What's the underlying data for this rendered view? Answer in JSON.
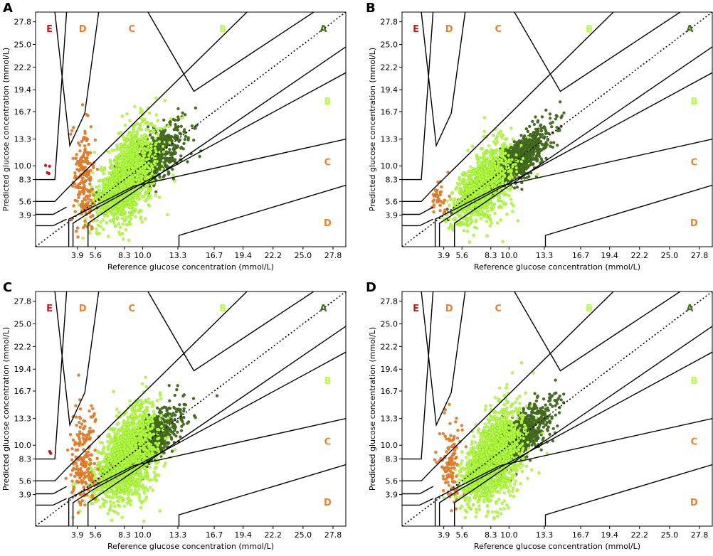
{
  "figure": {
    "x_ticks": [
      "3.9",
      "5.6",
      "8.3",
      "10.0",
      "13.3",
      "16.7",
      "19.4",
      "22.2",
      "25.0",
      "27.8"
    ],
    "y_ticks": [
      "3.9",
      "5.6",
      "8.3",
      "10.0",
      "13.3",
      "16.7",
      "19.4",
      "22.2",
      "25.0",
      "27.8"
    ],
    "xlabel": "Reference glucose concentration (mmol/L)",
    "ylabel": "Predicted glucose concentration (mmol/L)",
    "zone_labels_top": [
      "E",
      "D",
      "C",
      "B",
      "A"
    ],
    "zone_labels_right": [
      "B",
      "C",
      "D"
    ],
    "colors": {
      "A": "#466f1f",
      "B": "#b3ff40",
      "C": "#e9822c",
      "D": "#e9822c",
      "E": "#cc1919"
    }
  },
  "panels": [
    {
      "letter": "A"
    },
    {
      "letter": "B"
    },
    {
      "letter": "C"
    },
    {
      "letter": "D"
    }
  ],
  "chart_data": [
    {
      "type": "scatter",
      "title": "A",
      "xlabel": "Reference glucose concentration (mmol/L)",
      "ylabel": "Predicted glucose concentration (mmol/L)",
      "xlim": [
        0,
        29
      ],
      "ylim": [
        0,
        29
      ],
      "x_ticks": [
        3.9,
        5.6,
        8.3,
        10.0,
        13.3,
        16.7,
        19.4,
        22.2,
        25.0,
        27.8
      ],
      "y_ticks": [
        3.9,
        5.6,
        8.3,
        10.0,
        13.3,
        16.7,
        19.4,
        22.2,
        25.0,
        27.8
      ],
      "series": [
        {
          "name": "Zone A",
          "color": "#466f1f",
          "n": 900,
          "center": [
            10.5,
            10.6
          ],
          "spread": [
            3.0,
            0.13
          ],
          "range": [
            3.5,
            18
          ]
        },
        {
          "name": "Zone B",
          "color": "#b3ff40",
          "n": 1500,
          "center": [
            8.5,
            8.3
          ],
          "spread": [
            2.5,
            0.28
          ],
          "range": [
            3.5,
            16
          ]
        },
        {
          "name": "Zone C/D",
          "color": "#e9822c",
          "n": 200,
          "center": [
            4.5,
            8.5
          ],
          "spread": [
            1.0,
            3.0
          ],
          "range": [
            2.8,
            6.5
          ]
        },
        {
          "name": "Zone E",
          "color": "#cc1919",
          "n": 4,
          "center": [
            1.2,
            9.4
          ],
          "spread": [
            0.3,
            0.6
          ],
          "range": [
            0.8,
            1.7
          ]
        }
      ],
      "annotations": [
        "E",
        "D",
        "C",
        "B",
        "A",
        "B",
        "C",
        "D"
      ]
    },
    {
      "type": "scatter",
      "title": "B",
      "xlabel": "Reference glucose concentration (mmol/L)",
      "ylabel": "Predicted glucose concentration (mmol/L)",
      "xlim": [
        0,
        29
      ],
      "ylim": [
        0,
        29
      ],
      "x_ticks": [
        3.9,
        5.6,
        8.3,
        10.0,
        13.3,
        16.7,
        19.4,
        22.2,
        25.0,
        27.8
      ],
      "y_ticks": [
        3.9,
        5.6,
        8.3,
        10.0,
        13.3,
        16.7,
        19.4,
        22.2,
        25.0,
        27.8
      ],
      "series": [
        {
          "name": "Zone A",
          "color": "#466f1f",
          "n": 1400,
          "center": [
            10.0,
            10.0
          ],
          "spread": [
            3.2,
            0.1
          ],
          "range": [
            3.5,
            17.5
          ]
        },
        {
          "name": "Zone B",
          "color": "#b3ff40",
          "n": 1100,
          "center": [
            7.5,
            7.0
          ],
          "spread": [
            2.3,
            0.25
          ],
          "range": [
            3.5,
            15
          ]
        },
        {
          "name": "Zone C/D",
          "color": "#e9822c",
          "n": 40,
          "center": [
            3.5,
            6.0
          ],
          "spread": [
            0.8,
            1.0
          ],
          "range": [
            2.5,
            5.0
          ]
        },
        {
          "name": "Zone E",
          "color": "#cc1919",
          "n": 0,
          "center": [
            1.2,
            9.4
          ],
          "spread": [
            0.3,
            0.6
          ],
          "range": [
            0.8,
            1.7
          ]
        }
      ],
      "annotations": [
        "E",
        "D",
        "C",
        "B",
        "A",
        "B",
        "C",
        "D"
      ]
    },
    {
      "type": "scatter",
      "title": "C",
      "xlabel": "Reference glucose concentration (mmol/L)",
      "ylabel": "Predicted glucose concentration (mmol/L)",
      "xlim": [
        0,
        29
      ],
      "ylim": [
        0,
        29
      ],
      "x_ticks": [
        3.9,
        5.6,
        8.3,
        10.0,
        13.3,
        16.7,
        19.4,
        22.2,
        25.0,
        27.8
      ],
      "y_ticks": [
        3.9,
        5.6,
        8.3,
        10.0,
        13.3,
        16.7,
        19.4,
        22.2,
        25.0,
        27.8
      ],
      "series": [
        {
          "name": "Zone A",
          "color": "#466f1f",
          "n": 1000,
          "center": [
            10.2,
            10.3
          ],
          "spread": [
            3.0,
            0.12
          ],
          "range": [
            3.5,
            18.5
          ]
        },
        {
          "name": "Zone B",
          "color": "#b3ff40",
          "n": 1600,
          "center": [
            8.5,
            7.8
          ],
          "spread": [
            2.6,
            0.28
          ],
          "range": [
            3.5,
            16.5
          ]
        },
        {
          "name": "Zone C/D",
          "color": "#e9822c",
          "n": 200,
          "center": [
            4.5,
            8.2
          ],
          "spread": [
            1.1,
            3.0
          ],
          "range": [
            2.8,
            6.8
          ]
        },
        {
          "name": "Zone E",
          "color": "#cc1919",
          "n": 2,
          "center": [
            1.3,
            9.5
          ],
          "spread": [
            0.2,
            0.5
          ],
          "range": [
            1.0,
            1.6
          ]
        }
      ],
      "annotations": [
        "E",
        "D",
        "C",
        "B",
        "A",
        "B",
        "C",
        "D"
      ]
    },
    {
      "type": "scatter",
      "title": "D",
      "xlabel": "Reference glucose concentration (mmol/L)",
      "ylabel": "Predicted glucose concentration (mmol/L)",
      "xlim": [
        0,
        29
      ],
      "ylim": [
        0,
        29
      ],
      "x_ticks": [
        3.9,
        5.6,
        8.3,
        10.0,
        13.3,
        16.7,
        19.4,
        22.2,
        25.0,
        27.8
      ],
      "y_ticks": [
        3.9,
        5.6,
        8.3,
        10.0,
        13.3,
        16.7,
        19.4,
        22.2,
        25.0,
        27.8
      ],
      "series": [
        {
          "name": "Zone A",
          "color": "#466f1f",
          "n": 1000,
          "center": [
            10.5,
            10.4
          ],
          "spread": [
            3.0,
            0.12
          ],
          "range": [
            3.5,
            18.5
          ]
        },
        {
          "name": "Zone B",
          "color": "#b3ff40",
          "n": 1700,
          "center": [
            8.5,
            7.6
          ],
          "spread": [
            2.5,
            0.27
          ],
          "range": [
            3.5,
            16
          ]
        },
        {
          "name": "Zone C/D",
          "color": "#e9822c",
          "n": 120,
          "center": [
            4.5,
            8.0
          ],
          "spread": [
            1.0,
            3.0
          ],
          "range": [
            2.8,
            6.5
          ]
        },
        {
          "name": "Zone E",
          "color": "#cc1919",
          "n": 0,
          "center": [
            1.2,
            9.4
          ],
          "spread": [
            0.3,
            0.6
          ],
          "range": [
            0.8,
            1.7
          ]
        }
      ],
      "annotations": [
        "E",
        "D",
        "C",
        "B",
        "A",
        "B",
        "C",
        "D"
      ]
    }
  ]
}
